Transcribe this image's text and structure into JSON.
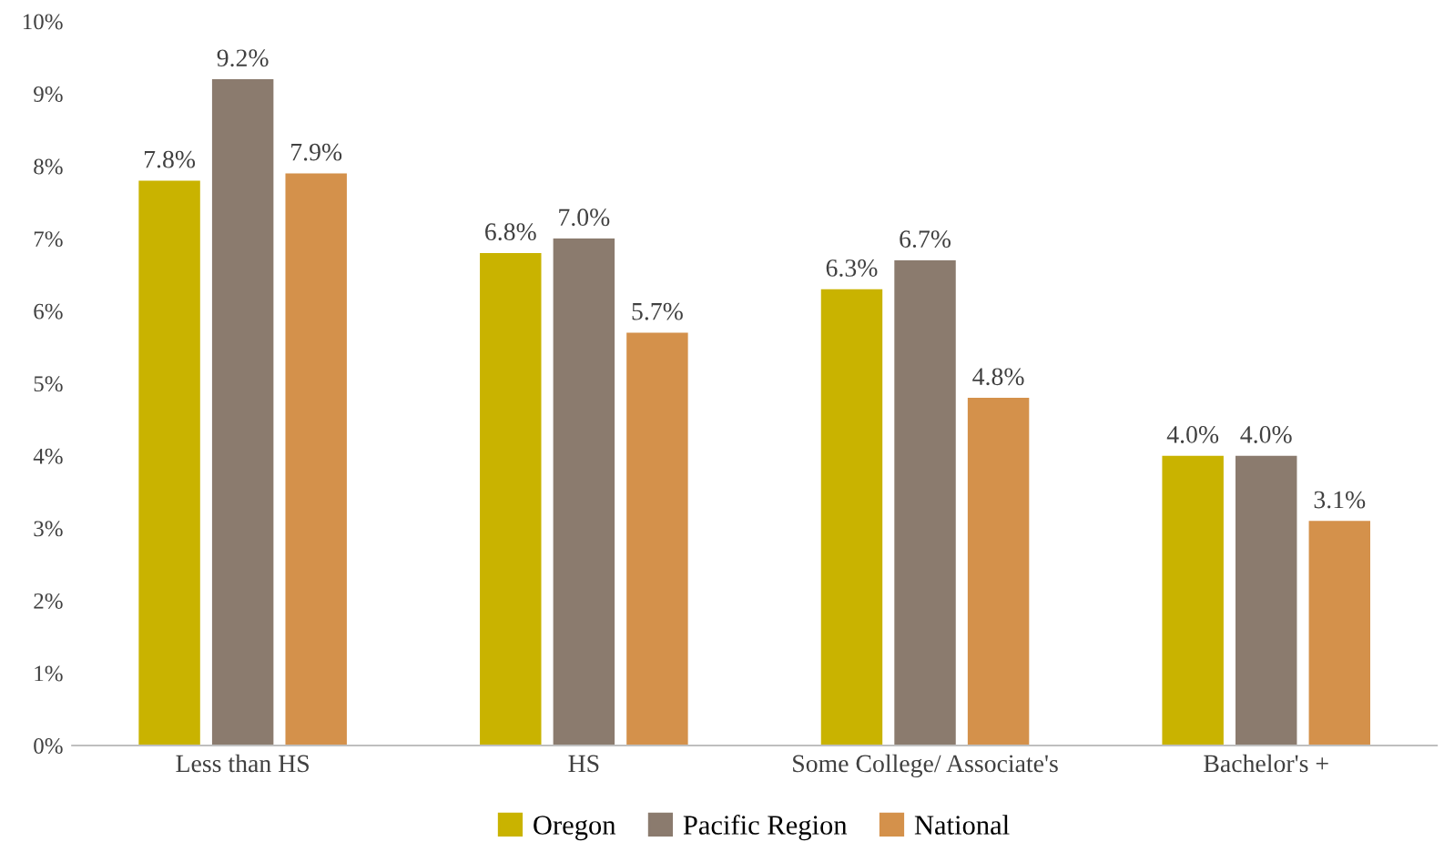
{
  "chart_data": {
    "type": "bar",
    "categories": [
      "Less than HS",
      "HS",
      "Some College/ Associate's",
      "Bachelor's +"
    ],
    "series": [
      {
        "name": "Oregon",
        "color": "#c9b300",
        "values": [
          7.8,
          6.8,
          6.3,
          4.0
        ],
        "value_labels": [
          "7.8%",
          "6.8%",
          "6.3%",
          "4.0%"
        ]
      },
      {
        "name": "Pacific Region",
        "color": "#8b7b6e",
        "values": [
          9.2,
          7.0,
          6.7,
          4.0
        ],
        "value_labels": [
          "9.2%",
          "7.0%",
          "6.7%",
          "4.0%"
        ]
      },
      {
        "name": "National",
        "color": "#d4914b",
        "values": [
          7.9,
          5.7,
          4.8,
          3.1
        ],
        "value_labels": [
          "7.9%",
          "5.7%",
          "4.8%",
          "3.1%"
        ]
      }
    ],
    "ylim": [
      0,
      10
    ],
    "yticks": [
      {
        "value": 0,
        "label": "0%"
      },
      {
        "value": 1,
        "label": "1%"
      },
      {
        "value": 2,
        "label": "2%"
      },
      {
        "value": 3,
        "label": "3%"
      },
      {
        "value": 4,
        "label": "4%"
      },
      {
        "value": 5,
        "label": "5%"
      },
      {
        "value": 6,
        "label": "6%"
      },
      {
        "value": 7,
        "label": "7%"
      },
      {
        "value": 8,
        "label": "8%"
      },
      {
        "value": 9,
        "label": "9%"
      },
      {
        "value": 10,
        "label": "10%"
      }
    ],
    "legend": "bottom"
  }
}
